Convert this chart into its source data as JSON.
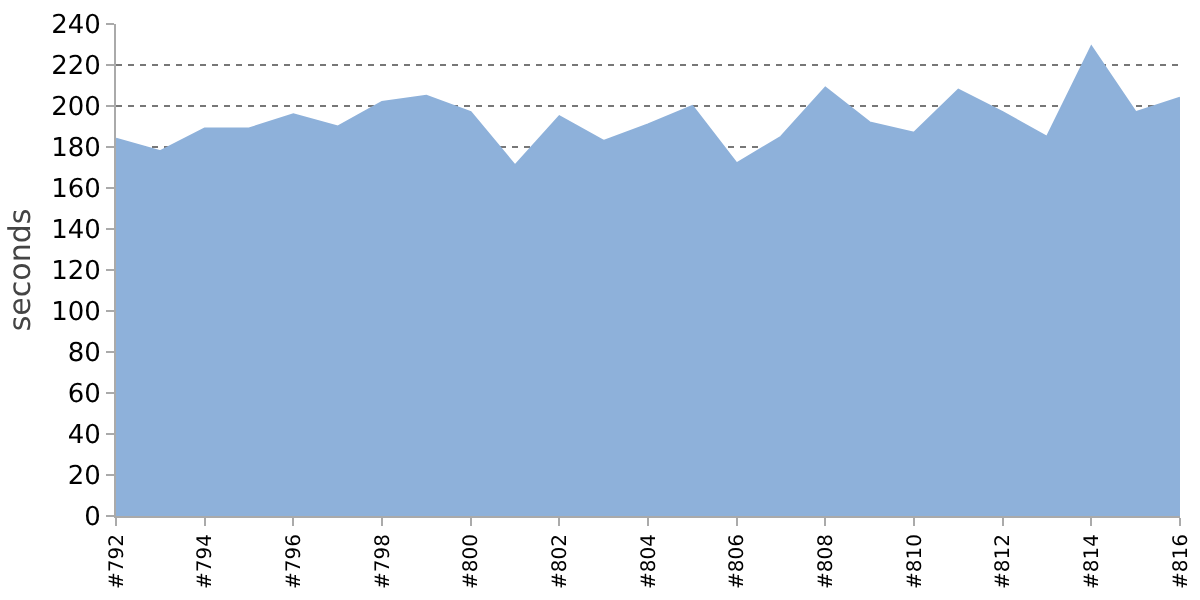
{
  "chart_data": {
    "type": "area",
    "ylabel": "seconds",
    "categories": [
      "#792",
      null,
      "#794",
      null,
      "#796",
      null,
      "#798",
      null,
      "#800",
      null,
      "#802",
      null,
      "#804",
      null,
      "#806",
      null,
      "#808",
      null,
      "#810",
      null,
      "#812",
      null,
      "#814",
      null,
      "#816"
    ],
    "series": [
      {
        "color": "#8eb1da",
        "values": [
          184,
          178,
          189,
          189,
          196,
          190,
          202,
          205,
          197,
          171,
          195,
          183,
          191,
          200,
          172,
          185,
          209,
          192,
          187,
          208,
          197,
          185,
          229,
          197,
          204
        ]
      }
    ],
    "ylim": [
      0,
      240
    ],
    "yticks": [
      0,
      20,
      40,
      60,
      80,
      100,
      120,
      140,
      160,
      180,
      200,
      220,
      240
    ],
    "grid": "y"
  }
}
